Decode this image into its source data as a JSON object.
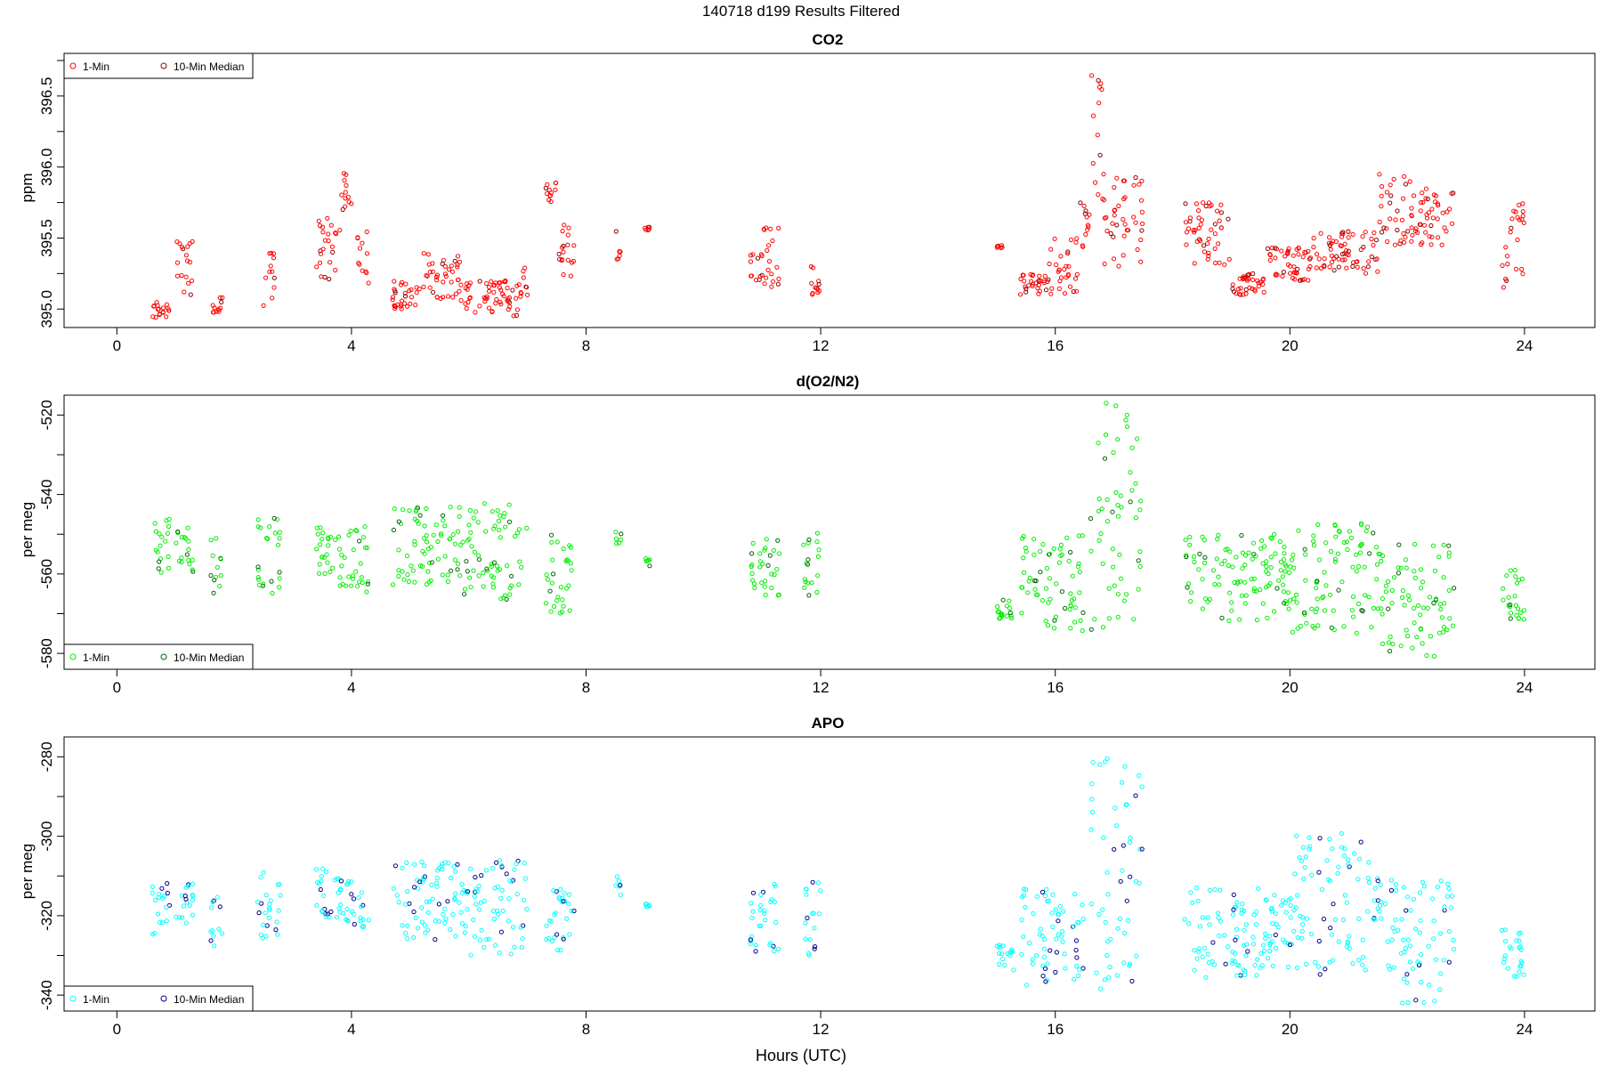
{
  "figure": {
    "title": "140718   d199   Results Filtered",
    "xlabel": "Hours (UTC)"
  },
  "chart_data": [
    {
      "type": "scatter",
      "title": "CO2",
      "ylabel": "ppm",
      "xlim": [
        -0.9,
        25.2
      ],
      "ylim": [
        394.87,
        396.8
      ],
      "x_ticks": [
        "0",
        "4",
        "8",
        "12",
        "16",
        "20",
        "24"
      ],
      "y_ticks": [
        "395.0",
        "395.5",
        "396.0",
        "396.5"
      ],
      "y_tick_values": [
        395.0,
        395.5,
        396.0,
        396.5
      ],
      "legend": {
        "position": "top-left",
        "entries": [
          "1-Min",
          "10-Min Median"
        ]
      },
      "colors": {
        "one_min": "#ff0000",
        "median": "#8b0000"
      },
      "clusters": [
        [
          0.6,
          0.9,
          394.93,
          395.05
        ],
        [
          1.0,
          1.3,
          395.1,
          395.48
        ],
        [
          1.6,
          1.8,
          394.95,
          395.1
        ],
        [
          2.5,
          2.7,
          395.0,
          395.45
        ],
        [
          3.4,
          3.8,
          395.2,
          395.75
        ],
        [
          3.8,
          4.0,
          395.7,
          395.98
        ],
        [
          4.1,
          4.3,
          395.1,
          395.55
        ],
        [
          4.7,
          5.2,
          395.0,
          395.2
        ],
        [
          5.2,
          5.9,
          395.05,
          395.4
        ],
        [
          5.9,
          6.9,
          394.95,
          395.2
        ],
        [
          6.9,
          7.0,
          395.05,
          395.3
        ],
        [
          7.3,
          7.5,
          395.75,
          395.9
        ],
        [
          7.5,
          7.8,
          395.2,
          395.6
        ],
        [
          8.5,
          8.6,
          395.35,
          395.55
        ],
        [
          9.0,
          9.1,
          395.55,
          395.58
        ],
        [
          10.8,
          11.0,
          395.2,
          395.4
        ],
        [
          11.0,
          11.3,
          395.15,
          395.58
        ],
        [
          11.8,
          12.0,
          395.1,
          395.38
        ],
        [
          15.0,
          15.1,
          395.43,
          395.45
        ],
        [
          15.4,
          15.9,
          395.1,
          395.25
        ],
        [
          15.9,
          16.4,
          395.1,
          395.5
        ],
        [
          16.4,
          16.6,
          395.4,
          395.75
        ],
        [
          16.6,
          16.8,
          395.8,
          396.7
        ],
        [
          16.8,
          17.5,
          395.3,
          395.95
        ],
        [
          18.2,
          19.0,
          395.3,
          395.75
        ],
        [
          19.0,
          19.6,
          395.1,
          395.25
        ],
        [
          19.6,
          20.4,
          395.2,
          395.45
        ],
        [
          20.4,
          21.5,
          395.25,
          395.55
        ],
        [
          21.5,
          22.1,
          395.45,
          395.95
        ],
        [
          22.1,
          22.8,
          395.45,
          395.85
        ],
        [
          23.6,
          24.0,
          395.15,
          395.75
        ]
      ]
    },
    {
      "type": "scatter",
      "title": "d(O2/N2)",
      "ylabel": "per meg",
      "xlim": [
        -0.9,
        25.2
      ],
      "ylim": [
        -584,
        -515
      ],
      "x_ticks": [
        "0",
        "4",
        "8",
        "12",
        "16",
        "20",
        "24"
      ],
      "y_ticks": [
        "-520",
        "-540",
        "-560",
        "-580"
      ],
      "y_tick_values": [
        -520,
        -540,
        -560,
        -580
      ],
      "legend": {
        "position": "bottom-left",
        "entries": [
          "1-Min",
          "10-Min Median"
        ]
      },
      "colors": {
        "one_min": "#00ee00",
        "median": "#006400"
      },
      "clusters": [
        [
          0.6,
          0.9,
          -562,
          -546
        ],
        [
          1.0,
          1.3,
          -560,
          -548
        ],
        [
          1.6,
          1.8,
          -565,
          -550
        ],
        [
          2.4,
          2.8,
          -565,
          -545
        ],
        [
          3.4,
          3.8,
          -560,
          -548
        ],
        [
          3.8,
          4.3,
          -565,
          -548
        ],
        [
          4.7,
          5.9,
          -563,
          -543
        ],
        [
          5.9,
          7.0,
          -567,
          -542
        ],
        [
          7.3,
          7.8,
          -570,
          -550
        ],
        [
          8.5,
          8.6,
          -555,
          -549
        ],
        [
          9.0,
          9.1,
          -558,
          -556
        ],
        [
          10.8,
          11.3,
          -566,
          -550
        ],
        [
          11.7,
          12.0,
          -567,
          -549
        ],
        [
          15.0,
          15.3,
          -572,
          -566
        ],
        [
          15.4,
          16.5,
          -575,
          -550
        ],
        [
          16.6,
          17.5,
          -575,
          -517
        ],
        [
          18.2,
          20.0,
          -572,
          -550
        ],
        [
          20.0,
          21.5,
          -575,
          -547
        ],
        [
          21.5,
          22.8,
          -581,
          -552
        ],
        [
          23.6,
          24.0,
          -573,
          -559
        ]
      ]
    },
    {
      "type": "scatter",
      "title": "APO",
      "ylabel": "per meg",
      "xlim": [
        -0.9,
        25.2
      ],
      "ylim": [
        -344,
        -275
      ],
      "x_ticks": [
        "0",
        "4",
        "8",
        "12",
        "16",
        "20",
        "24"
      ],
      "y_ticks": [
        "-280",
        "-300",
        "-320",
        "-340"
      ],
      "y_tick_values": [
        -280,
        -300,
        -320,
        -340
      ],
      "legend": {
        "position": "bottom-left",
        "entries": [
          "1-Min",
          "10-Min Median"
        ]
      },
      "colors": {
        "one_min": "#00ffff",
        "median": "#00008b"
      },
      "clusters": [
        [
          0.6,
          0.9,
          -325,
          -311
        ],
        [
          1.0,
          1.3,
          -322,
          -312
        ],
        [
          1.6,
          1.8,
          -328,
          -314
        ],
        [
          2.4,
          2.8,
          -327,
          -309
        ],
        [
          3.4,
          3.8,
          -321,
          -308
        ],
        [
          3.8,
          4.3,
          -323,
          -310
        ],
        [
          4.7,
          5.9,
          -326,
          -306
        ],
        [
          5.9,
          7.0,
          -330,
          -306
        ],
        [
          7.3,
          7.8,
          -329,
          -313
        ],
        [
          8.5,
          8.6,
          -315,
          -309
        ],
        [
          9.0,
          9.1,
          -318,
          -317
        ],
        [
          10.8,
          11.3,
          -329,
          -312
        ],
        [
          11.7,
          12.0,
          -330,
          -311
        ],
        [
          15.0,
          15.3,
          -334,
          -327
        ],
        [
          15.4,
          16.5,
          -338,
          -313
        ],
        [
          16.6,
          17.5,
          -339,
          -278
        ],
        [
          18.2,
          20.0,
          -336,
          -313
        ],
        [
          20.0,
          21.5,
          -335,
          -299
        ],
        [
          21.5,
          22.8,
          -342,
          -311
        ],
        [
          23.6,
          24.0,
          -336,
          -323
        ]
      ]
    }
  ]
}
